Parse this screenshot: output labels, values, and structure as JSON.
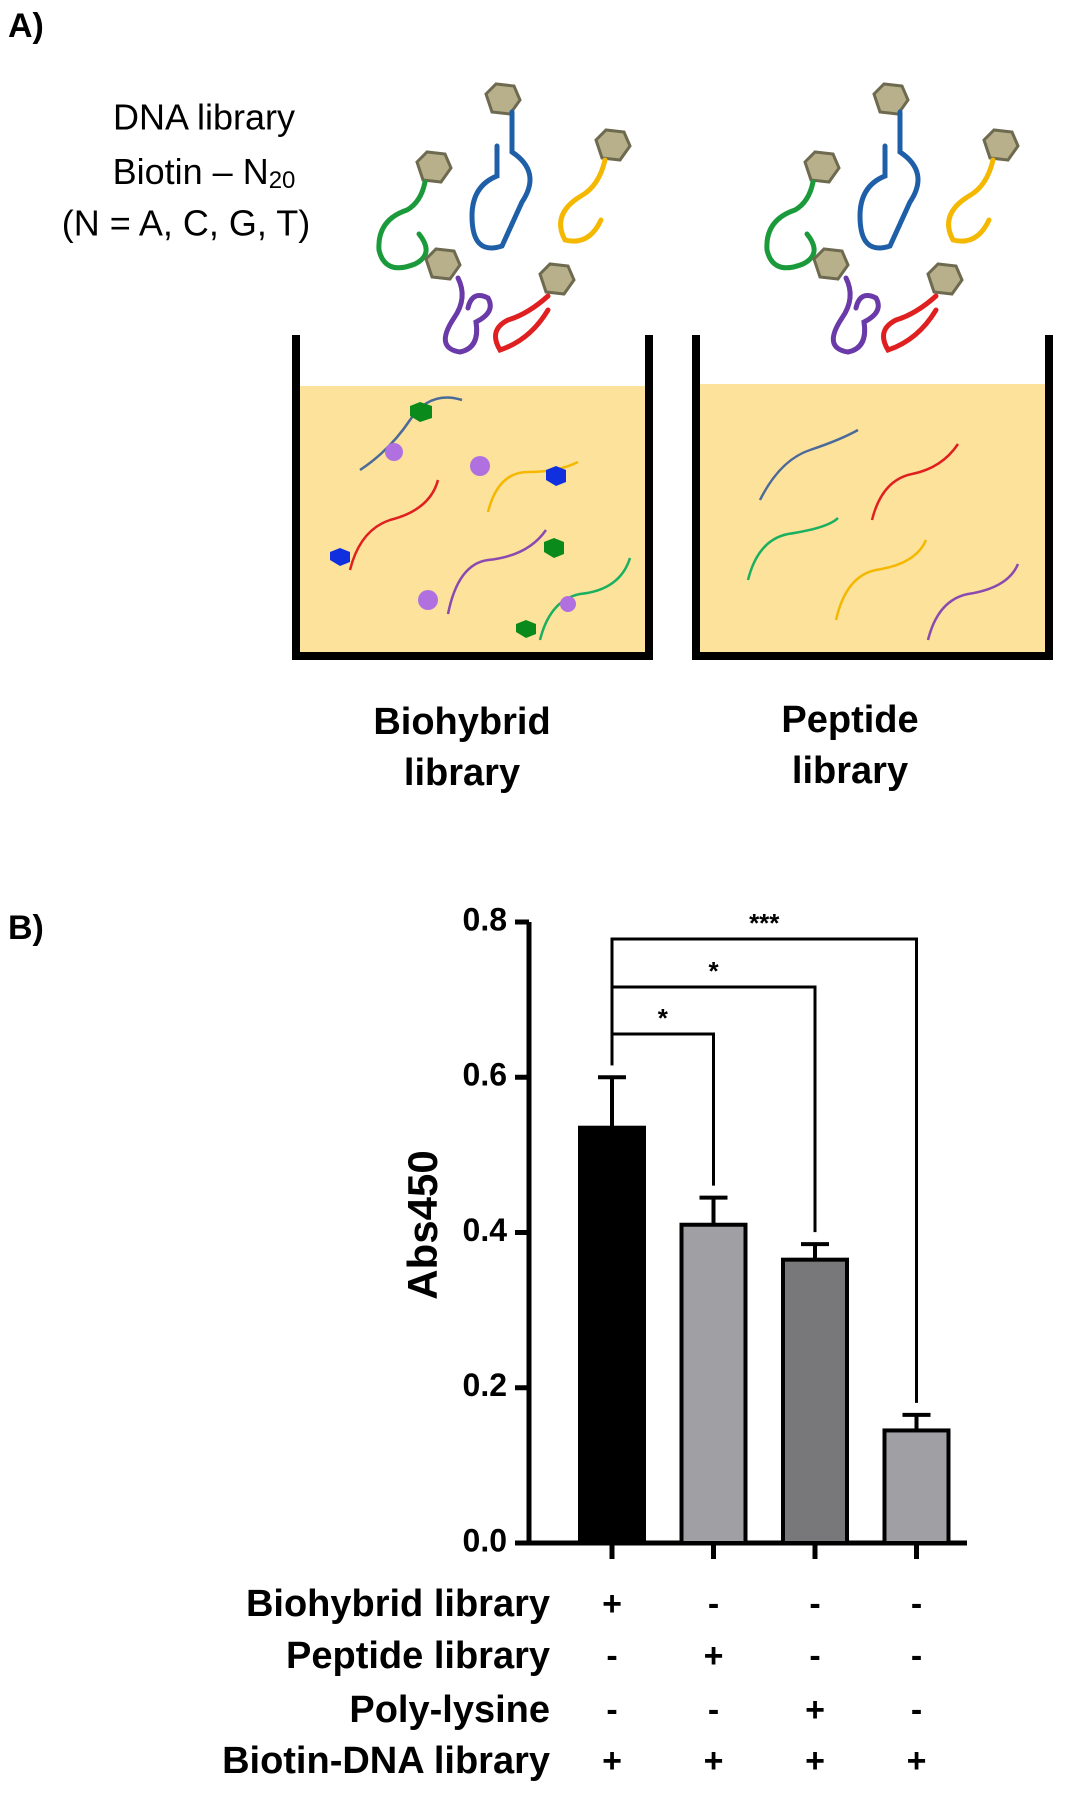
{
  "panel_a": {
    "label": "A)",
    "library_lines": [
      "DNA library",
      {
        "text": "Biotin – N",
        "subscript": "20"
      },
      "(N = A, C, G, T)"
    ],
    "wells": [
      {
        "lines": [
          "Biohybrid",
          "library"
        ]
      },
      {
        "lines": [
          "Peptide",
          "library"
        ]
      }
    ]
  },
  "chart_data": {
    "type": "bar",
    "panel_label": "B)",
    "y_label": "Abs450",
    "categories": [
      null,
      null,
      null,
      null
    ],
    "values": [
      0.535,
      0.41,
      0.365,
      0.145
    ],
    "errors": [
      0.065,
      0.035,
      0.02,
      0.02
    ],
    "colors": [
      "#000000",
      "#a0a0a4",
      "#78787a",
      "#a0a0a4"
    ],
    "ylim": [
      0,
      0.8
    ],
    "yticks": [
      {
        "value": 0,
        "label": "0.0"
      },
      0.2,
      0.4,
      0.6,
      0.8
    ],
    "significance_labels": [
      "*",
      "*",
      "***"
    ],
    "conditions": [
      {
        "label": "Biohybrid library",
        "values": [
          "+",
          "-",
          "-",
          "-"
        ]
      },
      {
        "label": "Peptide library",
        "values": [
          "-",
          "+",
          "-",
          "-"
        ]
      },
      {
        "label": "Poly-lysine",
        "values": [
          "-",
          "-",
          "+",
          "-"
        ]
      },
      {
        "label": "Biotin-DNA library",
        "values": [
          "+",
          "+",
          "+",
          "+"
        ]
      }
    ]
  }
}
